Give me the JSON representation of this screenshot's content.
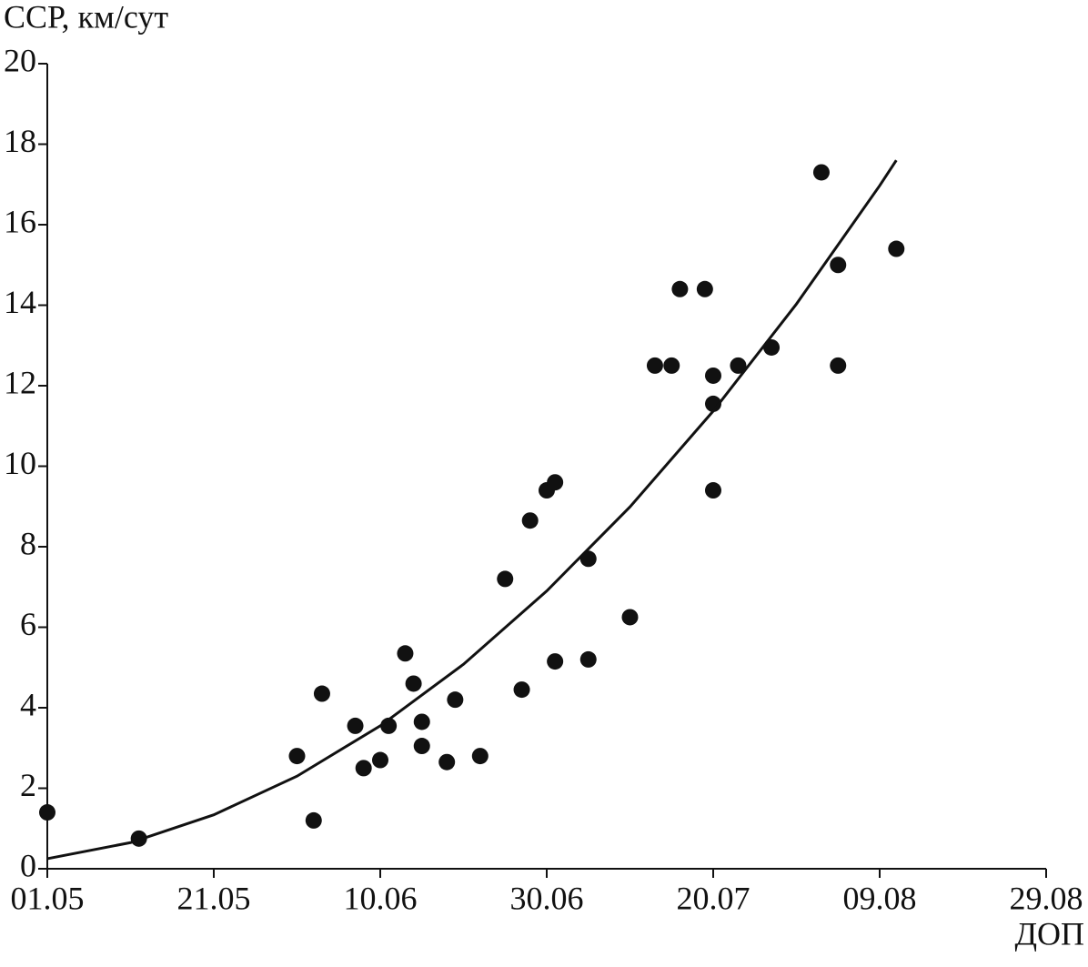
{
  "chart_data": {
    "type": "scatter",
    "y_label": "ССР, км/сут",
    "x_label": "ДОП",
    "xlim": [
      "01.05",
      "29.08"
    ],
    "xticks": [
      "01.05",
      "21.05",
      "10.06",
      "30.06",
      "20.07",
      "09.08",
      "29.08"
    ],
    "ylim": [
      0,
      20
    ],
    "yticks": [
      0,
      2,
      4,
      6,
      8,
      10,
      12,
      14,
      16,
      18,
      20
    ],
    "series": [
      {
        "kind": "points",
        "color": "#111111",
        "x": [
          "01.05",
          "12.05",
          "31.05",
          "02.06",
          "03.06",
          "07.06",
          "08.06",
          "10.06",
          "11.06",
          "13.06",
          "14.06",
          "15.06",
          "15.06",
          "18.06",
          "19.06",
          "22.06",
          "25.06",
          "27.06",
          "28.06",
          "30.06",
          "01.07",
          "01.07",
          "05.07",
          "05.07",
          "10.07",
          "13.07",
          "15.07",
          "16.07",
          "19.07",
          "20.07",
          "20.07",
          "20.07",
          "23.07",
          "27.07",
          "02.08",
          "04.08",
          "04.08",
          "11.08"
        ],
        "values": [
          1.4,
          0.75,
          2.8,
          1.2,
          4.35,
          3.55,
          2.5,
          2.7,
          3.55,
          5.35,
          4.6,
          3.65,
          3.05,
          2.65,
          4.2,
          2.8,
          7.2,
          4.45,
          8.65,
          9.4,
          9.6,
          5.15,
          7.7,
          5.2,
          6.25,
          12.5,
          12.5,
          14.4,
          14.4,
          12.25,
          11.55,
          9.4,
          12.5,
          12.95,
          17.3,
          15.0,
          12.5,
          15.4
        ]
      },
      {
        "kind": "line",
        "color": "#111111",
        "x": [
          "01.05",
          "11.05",
          "21.05",
          "31.05",
          "10.06",
          "20.06",
          "30.06",
          "10.07",
          "20.07",
          "30.07",
          "09.08",
          "11.08"
        ],
        "values": [
          0.25,
          0.65,
          1.34,
          2.3,
          3.55,
          5.08,
          6.9,
          8.99,
          11.37,
          14.03,
          16.97,
          17.6
        ]
      }
    ]
  }
}
